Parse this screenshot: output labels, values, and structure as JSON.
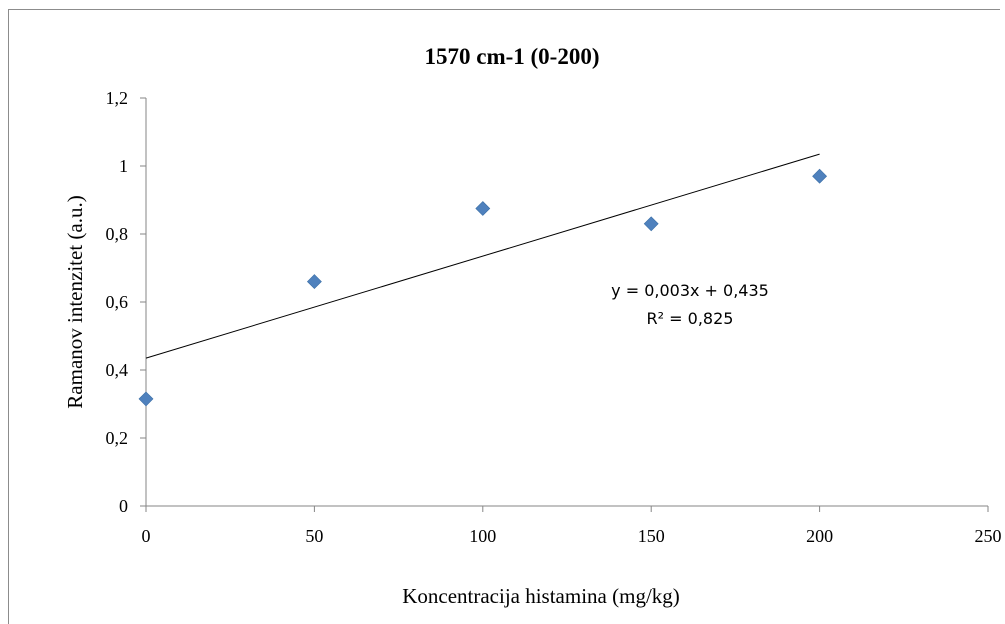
{
  "chart_data": {
    "type": "scatter",
    "title": "1570 cm-1 (0-200)",
    "xlabel": "Koncentracija histamina (mg/kg)",
    "ylabel": "Ramanov intenzitet  (a.u.)",
    "xlim": [
      0,
      250
    ],
    "ylim": [
      0,
      1.2
    ],
    "x_ticks": [
      0,
      50,
      100,
      150,
      200,
      250
    ],
    "y_ticks": [
      0,
      0.2,
      0.4,
      0.6,
      0.8,
      1,
      1.2
    ],
    "x_tick_labels": [
      "0",
      "50",
      "100",
      "150",
      "200",
      "250"
    ],
    "y_tick_labels": [
      "0",
      "0,2",
      "0,4",
      "0,6",
      "0,8",
      "1",
      "1,2"
    ],
    "grid": false,
    "series": [
      {
        "x": [
          0,
          50,
          100,
          150,
          200
        ],
        "y": [
          0.315,
          0.66,
          0.875,
          0.83,
          0.97
        ],
        "color": "#4f81bd",
        "marker": "diamond"
      }
    ],
    "trendline": {
      "slope": 0.003,
      "intercept": 0.435,
      "x_range": [
        0,
        200
      ],
      "color": "#000000",
      "equation": "y = 0,003x + 0,435",
      "r_squared": "R² = 0,825"
    }
  }
}
